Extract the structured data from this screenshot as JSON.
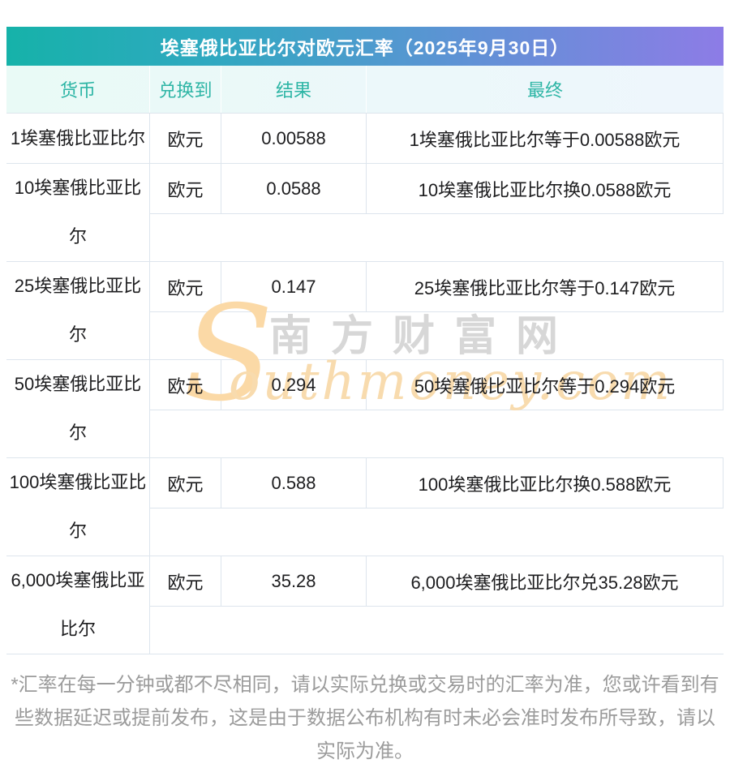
{
  "title": "埃塞俄比亚比尔对欧元汇率（2025年9月30日）",
  "table": {
    "headers": {
      "currency": "货币",
      "to": "兑换到",
      "result": "结果",
      "final": "最终"
    },
    "rows": [
      {
        "currency_lines": [
          "1埃塞俄比亚比尔"
        ],
        "to": "欧元",
        "result": "0.00588",
        "final": "1埃塞俄比亚比尔等于0.00588欧元"
      },
      {
        "currency_lines": [
          "10埃塞俄比亚比",
          "尔"
        ],
        "to": "欧元",
        "result": "0.0588",
        "final": "10埃塞俄比亚比尔换0.0588欧元"
      },
      {
        "currency_lines": [
          "25埃塞俄比亚比",
          "尔"
        ],
        "to": "欧元",
        "result": "0.147",
        "final": "25埃塞俄比亚比尔等于0.147欧元"
      },
      {
        "currency_lines": [
          "50埃塞俄比亚比",
          "尔"
        ],
        "to": "欧元",
        "result": "0.294",
        "final": "50埃塞俄比亚比尔等于0.294欧元"
      },
      {
        "currency_lines": [
          "100埃塞俄比亚比",
          "尔"
        ],
        "to": "欧元",
        "result": "0.588",
        "final": "100埃塞俄比亚比尔换0.588欧元"
      },
      {
        "currency_lines": [
          "6,000埃塞俄比亚",
          "比尔"
        ],
        "to": "欧元",
        "result": "35.28",
        "final": "6,000埃塞俄比亚比尔兑35.28欧元"
      }
    ]
  },
  "watermark": {
    "s": "S",
    "cn": "南方财富网",
    "en": "outhmoney.com"
  },
  "footer": {
    "lines": [
      "*汇率在每一分钟或都不尽相同，请以实际兑换或交易时的汇率为准，您或许看到有",
      "些数据延迟或提前发布，这是由于数据公布机构有时未必会准时发布所导致，请以",
      "实际为准。"
    ]
  },
  "colors": {
    "gradient_left": "#16b2a9",
    "gradient_right": "#8d7ce6",
    "header_text": "#2db5a5",
    "header_bg": "#e9faf6",
    "border": "#dde5ed",
    "body_text": "#1d1d1f",
    "footer_text": "#9b9b9b",
    "watermark_orange": "#fbd9a6",
    "watermark_gray": "#d7d7d7"
  }
}
